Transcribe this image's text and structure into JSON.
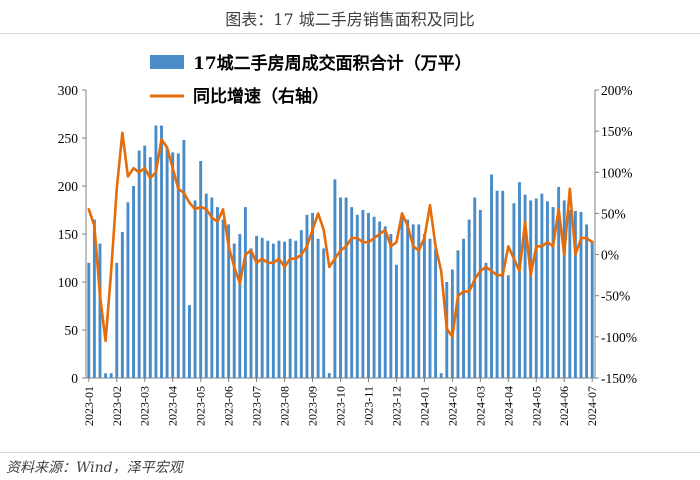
{
  "page": {
    "title": "图表：17 城二手房销售面积及同比",
    "source": "资料来源：Wind，泽平宏观"
  },
  "chart_data": {
    "type": "bar+line",
    "legend": {
      "bar_label": "17城二手房周成交面积合计（万平）",
      "line_label": "同比增速（右轴）"
    },
    "left_axis": {
      "ylim": [
        0,
        300
      ],
      "ticks": [
        "300",
        "250",
        "200",
        "150",
        "100",
        "50",
        "0"
      ]
    },
    "right_axis": {
      "ylim": [
        -150,
        200
      ],
      "ticks": [
        "200%",
        "150%",
        "100%",
        "50%",
        "0%",
        "-50%",
        "-100%",
        "-150%"
      ]
    },
    "x_tick_labels": [
      "2023-01",
      "2023-02",
      "2023-03",
      "2023-04",
      "2023-05",
      "2023-06",
      "2023-07",
      "2023-08",
      "2023-09",
      "2023-10",
      "2023-11",
      "2023-12",
      "2024-01",
      "2024-02",
      "2024-03",
      "2024-04",
      "2024-05",
      "2024-06",
      "2024-07"
    ],
    "series": [
      {
        "name": "17城二手房周成交面积合计（万平）",
        "axis": "left",
        "kind": "bar",
        "color": "#4a8cc8",
        "values": [
          120,
          165,
          140,
          5,
          5,
          120,
          152,
          183,
          200,
          237,
          242,
          230,
          263,
          263,
          240,
          235,
          234,
          248,
          76,
          185,
          226,
          192,
          188,
          178,
          165,
          160,
          140,
          150,
          178,
          135,
          148,
          146,
          143,
          140,
          143,
          142,
          145,
          143,
          154,
          170,
          172,
          145,
          135,
          5,
          207,
          188,
          188,
          178,
          170,
          175,
          172,
          168,
          163,
          158,
          150,
          118,
          170,
          165,
          160,
          160,
          150,
          145,
          135,
          5,
          100,
          113,
          133,
          145,
          165,
          188,
          175,
          120,
          212,
          195,
          195,
          107,
          182,
          204,
          191,
          185,
          187,
          192,
          184,
          178,
          199,
          185,
          175,
          174,
          173,
          160,
          143
        ]
      },
      {
        "name": "同比增速（右轴）",
        "axis": "right",
        "kind": "line",
        "color": "#e46c0a",
        "values": [
          55,
          35,
          -50,
          -105,
          -20,
          80,
          148,
          95,
          105,
          100,
          105,
          93,
          100,
          140,
          130,
          105,
          80,
          75,
          63,
          55,
          58,
          55,
          45,
          40,
          55,
          10,
          -15,
          -35,
          0,
          5,
          -10,
          -5,
          -10,
          -10,
          -5,
          -15,
          -5,
          -5,
          0,
          10,
          30,
          50,
          30,
          -15,
          -5,
          5,
          10,
          20,
          20,
          15,
          15,
          20,
          25,
          30,
          10,
          15,
          50,
          35,
          10,
          5,
          20,
          60,
          10,
          -20,
          -90,
          -100,
          -50,
          -45,
          -45,
          -30,
          -20,
          -15,
          -20,
          -25,
          -25,
          10,
          -5,
          -20,
          40,
          -25,
          10,
          10,
          15,
          10,
          55,
          0,
          80,
          0,
          20,
          20,
          15
        ]
      }
    ]
  }
}
